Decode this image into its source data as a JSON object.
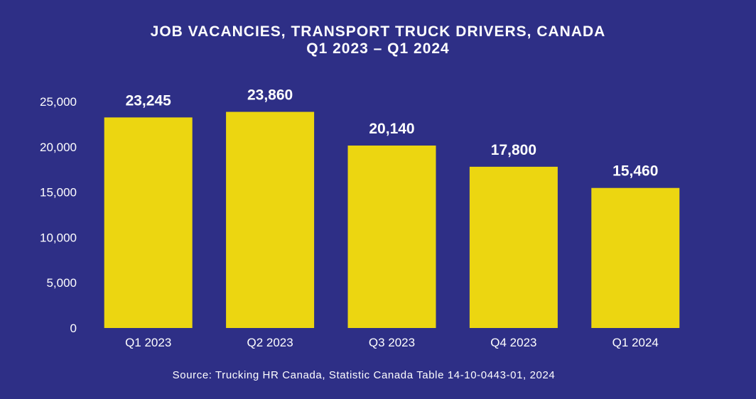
{
  "chart_data": {
    "type": "bar",
    "title": "JOB VACANCIES, TRANSPORT TRUCK DRIVERS, CANADA",
    "subtitle": "Q1 2023 – Q1 2024",
    "categories": [
      "Q1 2023",
      "Q2 2023",
      "Q3 2023",
      "Q4 2023",
      "Q1 2024"
    ],
    "values": [
      23245,
      23860,
      20140,
      17800,
      15460
    ],
    "data_labels": [
      "23,245",
      "23,860",
      "20,140",
      "17,800",
      "15,460"
    ],
    "yticks": [
      0,
      5000,
      10000,
      15000,
      20000,
      25000
    ],
    "ytick_labels": [
      "0",
      "5,000",
      "10,000",
      "15,000",
      "20,000",
      "25,000"
    ],
    "ylim": [
      0,
      25000
    ],
    "xlabel": "",
    "ylabel": "",
    "grid": false,
    "source": "Source: Trucking HR Canada, Statistic Canada Table 14-10-0443-01, 2024"
  },
  "colors": {
    "background": "#2e2f86",
    "bar": "#ecd611",
    "text": "#ffffff"
  }
}
